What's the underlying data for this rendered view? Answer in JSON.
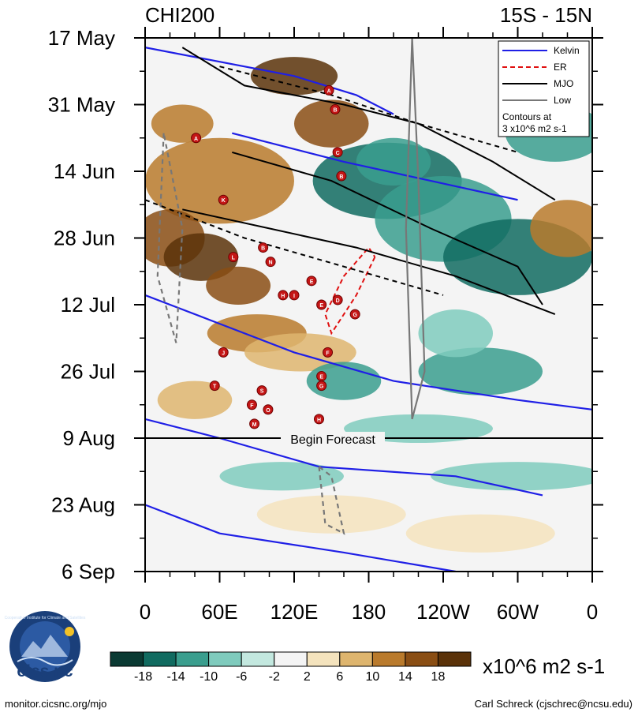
{
  "chart_data": {
    "type": "heatmap",
    "title_left": "CHI200",
    "title_right": "15S - 15N",
    "x_tick_labels": [
      "0",
      "60E",
      "120E",
      "180",
      "120W",
      "60W",
      "0"
    ],
    "x_ticks_deg": [
      0,
      60,
      120,
      180,
      240,
      300,
      360
    ],
    "y_tick_labels": [
      "17 May",
      "31 May",
      "14 Jun",
      "28 Jun",
      "12 Jul",
      "26 Jul",
      "9 Aug",
      "23 Aug",
      "6 Sep"
    ],
    "y_ticks_day": [
      0,
      14,
      28,
      42,
      56,
      70,
      84,
      98,
      112
    ],
    "xlim_deg": [
      0,
      360
    ],
    "ylim_day": [
      0,
      112
    ],
    "forecast_start_label": "Begin Forecast",
    "forecast_start_day": 84,
    "legend": {
      "position": "top-right",
      "entries": [
        {
          "label": "Kelvin",
          "color": "#1f1fe6",
          "dash": "solid"
        },
        {
          "label": "ER",
          "color": "#e01010",
          "dash": "dashed"
        },
        {
          "label": "MJO",
          "color": "#000000",
          "dash": "solid"
        },
        {
          "label": "Low",
          "color": "#777777",
          "dash": "solid"
        }
      ],
      "note_lines": [
        "Contours at",
        "3 x10^6 m2 s-1"
      ]
    },
    "colorbar": {
      "tick_labels": [
        "-18",
        "-14",
        "-10",
        "-6",
        "-2",
        "2",
        "6",
        "10",
        "14",
        "18"
      ],
      "colors": [
        "#0b3a33",
        "#116b60",
        "#3a9e8e",
        "#7fcbbd",
        "#c3e8df",
        "#f4f4f4",
        "#f4e3bd",
        "#deb56e",
        "#b97a2c",
        "#8a4e14",
        "#5a3209"
      ],
      "units": "x10^6 m2 s-1"
    },
    "storm_markers": [
      {
        "letter": "A",
        "lon": 148,
        "day": 11
      },
      {
        "letter": "B",
        "lon": 153,
        "day": 15
      },
      {
        "letter": "A",
        "lon": 41,
        "day": 21
      },
      {
        "letter": "C",
        "lon": 155,
        "day": 24
      },
      {
        "letter": "B",
        "lon": 158,
        "day": 29
      },
      {
        "letter": "K",
        "lon": 63,
        "day": 34
      },
      {
        "letter": "B",
        "lon": 95,
        "day": 44
      },
      {
        "letter": "L",
        "lon": 71,
        "day": 46
      },
      {
        "letter": "N",
        "lon": 101,
        "day": 47
      },
      {
        "letter": "E",
        "lon": 134,
        "day": 51
      },
      {
        "letter": "H",
        "lon": 111,
        "day": 54
      },
      {
        "letter": "I",
        "lon": 120,
        "day": 54
      },
      {
        "letter": "D",
        "lon": 155,
        "day": 55
      },
      {
        "letter": "E",
        "lon": 142,
        "day": 56
      },
      {
        "letter": "G",
        "lon": 169,
        "day": 58
      },
      {
        "letter": "J",
        "lon": 63,
        "day": 66
      },
      {
        "letter": "F",
        "lon": 147,
        "day": 66
      },
      {
        "letter": "E",
        "lon": 142,
        "day": 71
      },
      {
        "letter": "T",
        "lon": 56,
        "day": 73
      },
      {
        "letter": "G",
        "lon": 142,
        "day": 73
      },
      {
        "letter": "S",
        "lon": 94,
        "day": 74
      },
      {
        "letter": "F",
        "lon": 86,
        "day": 77
      },
      {
        "letter": "O",
        "lon": 99,
        "day": 78
      },
      {
        "letter": "H",
        "lon": 140,
        "day": 80
      },
      {
        "letter": "M",
        "lon": 88,
        "day": 81
      }
    ]
  },
  "footer": {
    "logo_text": "cics.nc",
    "logo_ring_text": "Cooperative Institute for Climate and Satellites",
    "source_url": "monitor.cicsnc.org/mjo",
    "credit": "Carl Schreck (cjschrec@ncsu.edu)"
  }
}
